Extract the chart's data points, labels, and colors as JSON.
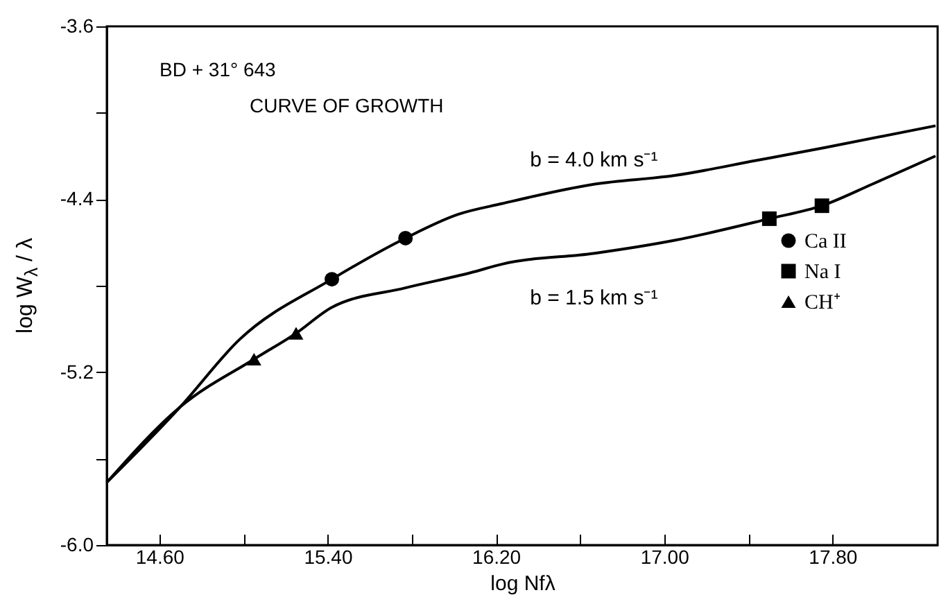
{
  "chart_data": {
    "type": "scatter",
    "title": "BD + 31° 643",
    "subtitle": "CURVE OF GROWTH",
    "xlabel": "log Nfλ",
    "ylabel": "log W$_{λ}$ / λ",
    "xlim": [
      14.35,
      18.3
    ],
    "ylim": [
      -6.0,
      -3.6
    ],
    "xticks": [
      {
        "value": 14.6,
        "label": "14.60"
      },
      {
        "value": 15.0,
        "label": null
      },
      {
        "value": 15.4,
        "label": "15.40"
      },
      {
        "value": 15.8,
        "label": null
      },
      {
        "value": 16.2,
        "label": "16.20"
      },
      {
        "value": 16.6,
        "label": null
      },
      {
        "value": 17.0,
        "label": "17.00"
      },
      {
        "value": 17.4,
        "label": null
      },
      {
        "value": 17.8,
        "label": "17.80"
      }
    ],
    "yticks": [
      -3.6,
      {
        "value": -4.0,
        "label": null
      },
      -4.4,
      {
        "value": -4.8,
        "label": null
      },
      -5.2,
      {
        "value": -5.6,
        "label": null
      },
      {
        "value": -6.0,
        "label": "-6.0"
      }
    ],
    "grid": false,
    "legend": "right",
    "series": [
      {
        "type": "line",
        "name": "b = 4.0 km s⁻¹",
        "color": "#000000",
        "marker": "none",
        "x": [
          14.35,
          14.7,
          14.98,
          15.42,
          15.77,
          16.02,
          16.23,
          16.67,
          17.05,
          17.44,
          17.77,
          18.29
        ],
        "values": [
          -5.71,
          -5.36,
          -5.05,
          -4.77,
          -4.58,
          -4.47,
          -4.42,
          -4.33,
          -4.29,
          -4.22,
          -4.16,
          -4.06
        ]
      },
      {
        "type": "line",
        "name": "b = 1.5 km s⁻¹",
        "color": "#000000",
        "marker": "none",
        "x": [
          14.35,
          14.7,
          15.05,
          15.25,
          15.42,
          15.77,
          16.08,
          16.23,
          16.67,
          17.05,
          17.5,
          17.75,
          17.99,
          18.29
        ],
        "values": [
          -5.71,
          -5.36,
          -5.14,
          -5.02,
          -4.9,
          -4.81,
          -4.74,
          -4.7,
          -4.65,
          -4.59,
          -4.49,
          -4.43,
          -4.33,
          -4.2
        ]
      },
      {
        "name": "Ca II",
        "color": "#000000",
        "marker": "circle",
        "x": [
          15.42,
          15.77
        ],
        "values": [
          -4.77,
          -4.58
        ]
      },
      {
        "name": "Na I",
        "color": "#000000",
        "marker": "square",
        "x": [
          17.5,
          17.75
        ],
        "values": [
          -4.49,
          -4.43
        ]
      },
      {
        "name": "CH⁺",
        "color": "#000000",
        "marker": "triangle",
        "x": [
          15.05,
          15.25
        ],
        "values": [
          -5.14,
          -5.02
        ]
      }
    ]
  }
}
